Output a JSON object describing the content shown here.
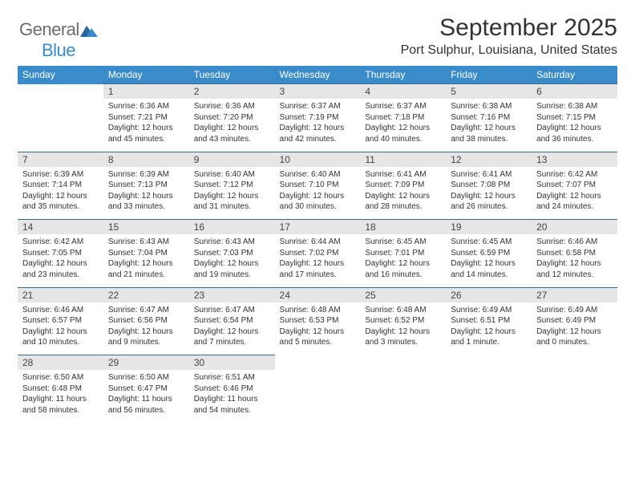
{
  "logo": {
    "general": "General",
    "blue": "Blue"
  },
  "title": "September 2025",
  "location": "Port Sulphur, Louisiana, United States",
  "colors": {
    "header_bg": "#3a8bc9",
    "header_text": "#ffffff",
    "daynum_bg": "#e6e6e6",
    "daynum_border_top": "#3a6a8a",
    "page_bg": "#ffffff",
    "text": "#333333"
  },
  "weekdays": [
    "Sunday",
    "Monday",
    "Tuesday",
    "Wednesday",
    "Thursday",
    "Friday",
    "Saturday"
  ],
  "weeks": [
    [
      null,
      {
        "n": "1",
        "sr": "Sunrise: 6:36 AM",
        "ss": "Sunset: 7:21 PM",
        "dl": "Daylight: 12 hours and 45 minutes."
      },
      {
        "n": "2",
        "sr": "Sunrise: 6:36 AM",
        "ss": "Sunset: 7:20 PM",
        "dl": "Daylight: 12 hours and 43 minutes."
      },
      {
        "n": "3",
        "sr": "Sunrise: 6:37 AM",
        "ss": "Sunset: 7:19 PM",
        "dl": "Daylight: 12 hours and 42 minutes."
      },
      {
        "n": "4",
        "sr": "Sunrise: 6:37 AM",
        "ss": "Sunset: 7:18 PM",
        "dl": "Daylight: 12 hours and 40 minutes."
      },
      {
        "n": "5",
        "sr": "Sunrise: 6:38 AM",
        "ss": "Sunset: 7:16 PM",
        "dl": "Daylight: 12 hours and 38 minutes."
      },
      {
        "n": "6",
        "sr": "Sunrise: 6:38 AM",
        "ss": "Sunset: 7:15 PM",
        "dl": "Daylight: 12 hours and 36 minutes."
      }
    ],
    [
      {
        "n": "7",
        "sr": "Sunrise: 6:39 AM",
        "ss": "Sunset: 7:14 PM",
        "dl": "Daylight: 12 hours and 35 minutes."
      },
      {
        "n": "8",
        "sr": "Sunrise: 6:39 AM",
        "ss": "Sunset: 7:13 PM",
        "dl": "Daylight: 12 hours and 33 minutes."
      },
      {
        "n": "9",
        "sr": "Sunrise: 6:40 AM",
        "ss": "Sunset: 7:12 PM",
        "dl": "Daylight: 12 hours and 31 minutes."
      },
      {
        "n": "10",
        "sr": "Sunrise: 6:40 AM",
        "ss": "Sunset: 7:10 PM",
        "dl": "Daylight: 12 hours and 30 minutes."
      },
      {
        "n": "11",
        "sr": "Sunrise: 6:41 AM",
        "ss": "Sunset: 7:09 PM",
        "dl": "Daylight: 12 hours and 28 minutes."
      },
      {
        "n": "12",
        "sr": "Sunrise: 6:41 AM",
        "ss": "Sunset: 7:08 PM",
        "dl": "Daylight: 12 hours and 26 minutes."
      },
      {
        "n": "13",
        "sr": "Sunrise: 6:42 AM",
        "ss": "Sunset: 7:07 PM",
        "dl": "Daylight: 12 hours and 24 minutes."
      }
    ],
    [
      {
        "n": "14",
        "sr": "Sunrise: 6:42 AM",
        "ss": "Sunset: 7:05 PM",
        "dl": "Daylight: 12 hours and 23 minutes."
      },
      {
        "n": "15",
        "sr": "Sunrise: 6:43 AM",
        "ss": "Sunset: 7:04 PM",
        "dl": "Daylight: 12 hours and 21 minutes."
      },
      {
        "n": "16",
        "sr": "Sunrise: 6:43 AM",
        "ss": "Sunset: 7:03 PM",
        "dl": "Daylight: 12 hours and 19 minutes."
      },
      {
        "n": "17",
        "sr": "Sunrise: 6:44 AM",
        "ss": "Sunset: 7:02 PM",
        "dl": "Daylight: 12 hours and 17 minutes."
      },
      {
        "n": "18",
        "sr": "Sunrise: 6:45 AM",
        "ss": "Sunset: 7:01 PM",
        "dl": "Daylight: 12 hours and 16 minutes."
      },
      {
        "n": "19",
        "sr": "Sunrise: 6:45 AM",
        "ss": "Sunset: 6:59 PM",
        "dl": "Daylight: 12 hours and 14 minutes."
      },
      {
        "n": "20",
        "sr": "Sunrise: 6:46 AM",
        "ss": "Sunset: 6:58 PM",
        "dl": "Daylight: 12 hours and 12 minutes."
      }
    ],
    [
      {
        "n": "21",
        "sr": "Sunrise: 6:46 AM",
        "ss": "Sunset: 6:57 PM",
        "dl": "Daylight: 12 hours and 10 minutes."
      },
      {
        "n": "22",
        "sr": "Sunrise: 6:47 AM",
        "ss": "Sunset: 6:56 PM",
        "dl": "Daylight: 12 hours and 9 minutes."
      },
      {
        "n": "23",
        "sr": "Sunrise: 6:47 AM",
        "ss": "Sunset: 6:54 PM",
        "dl": "Daylight: 12 hours and 7 minutes."
      },
      {
        "n": "24",
        "sr": "Sunrise: 6:48 AM",
        "ss": "Sunset: 6:53 PM",
        "dl": "Daylight: 12 hours and 5 minutes."
      },
      {
        "n": "25",
        "sr": "Sunrise: 6:48 AM",
        "ss": "Sunset: 6:52 PM",
        "dl": "Daylight: 12 hours and 3 minutes."
      },
      {
        "n": "26",
        "sr": "Sunrise: 6:49 AM",
        "ss": "Sunset: 6:51 PM",
        "dl": "Daylight: 12 hours and 1 minute."
      },
      {
        "n": "27",
        "sr": "Sunrise: 6:49 AM",
        "ss": "Sunset: 6:49 PM",
        "dl": "Daylight: 12 hours and 0 minutes."
      }
    ],
    [
      {
        "n": "28",
        "sr": "Sunrise: 6:50 AM",
        "ss": "Sunset: 6:48 PM",
        "dl": "Daylight: 11 hours and 58 minutes."
      },
      {
        "n": "29",
        "sr": "Sunrise: 6:50 AM",
        "ss": "Sunset: 6:47 PM",
        "dl": "Daylight: 11 hours and 56 minutes."
      },
      {
        "n": "30",
        "sr": "Sunrise: 6:51 AM",
        "ss": "Sunset: 6:46 PM",
        "dl": "Daylight: 11 hours and 54 minutes."
      },
      null,
      null,
      null,
      null
    ]
  ]
}
